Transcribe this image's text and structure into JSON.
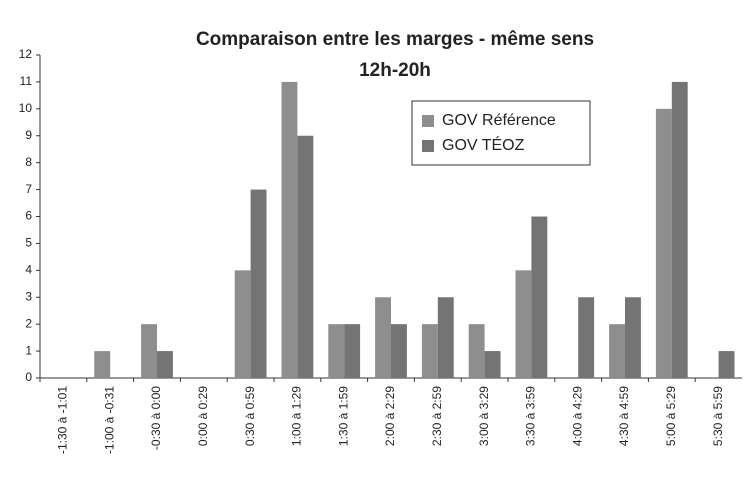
{
  "chart_data": {
    "type": "bar",
    "title": "Comparaison entre les marges - même sens",
    "subtitle": "12h-20h",
    "categories": [
      "-1:30 à -1:01",
      "-1:00 à -0:31",
      "-0:30 à 0:00",
      "0:00 à 0:29",
      "0:30 à 0:59",
      "1:00 à 1:29",
      "1:30 à 1:59",
      "2:00 à 2:29",
      "2:30 à 2:59",
      "3:00 à 3:29",
      "3:30 à 3:59",
      "4:00 à 4:29",
      "4:30 à 4:59",
      "5:00 à 5:29",
      "5:30 à 5:59"
    ],
    "series": [
      {
        "name": "GOV Référence",
        "color": "#8e8e8e",
        "values": [
          0,
          1,
          2,
          0,
          4,
          11,
          2,
          3,
          2,
          2,
          4,
          0,
          2,
          10,
          0
        ]
      },
      {
        "name": "GOV TÉOZ",
        "color": "#747474",
        "values": [
          0,
          0,
          1,
          0,
          7,
          9,
          2,
          2,
          3,
          1,
          6,
          3,
          3,
          11,
          1
        ]
      }
    ],
    "ylim": [
      0,
      12
    ],
    "yticks": [
      0,
      1,
      2,
      3,
      4,
      5,
      6,
      7,
      8,
      9,
      10,
      11,
      12
    ],
    "grid": false,
    "legend": "top-right"
  }
}
